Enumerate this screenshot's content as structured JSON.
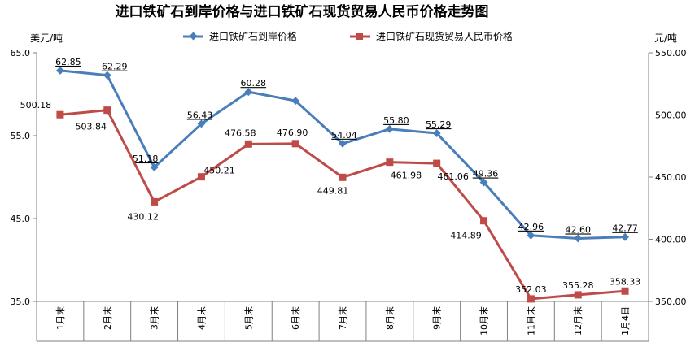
{
  "chart_data": {
    "type": "line",
    "title": "进口铁矿石到岸价格与进口铁矿石现货贸易人民币价格走势图",
    "categories": [
      "1月末",
      "2月末",
      "3月末",
      "4月末",
      "5月末",
      "6月末",
      "7月末",
      "8月末",
      "9月末",
      "10月末",
      "11月末",
      "12月末",
      "1月4日"
    ],
    "y_left": {
      "label": "美元/吨",
      "min": 35,
      "max": 65,
      "ticks": [
        "35.0",
        "45.0",
        "55.0",
        "65.0"
      ]
    },
    "y_right": {
      "label": "元/吨",
      "min": 350,
      "max": 550,
      "ticks": [
        "350.00",
        "400.00",
        "450.00",
        "500.00",
        "550.00"
      ]
    },
    "legend_position": "top",
    "series": [
      {
        "name": "进口铁矿石到岸价格",
        "axis": "left",
        "color": "#4a7ebb",
        "marker": "diamond",
        "values": [
          62.85,
          62.29,
          51.18,
          56.43,
          60.28,
          59.2,
          54.04,
          55.8,
          55.29,
          49.36,
          42.96,
          42.6,
          42.77
        ],
        "labels": [
          "62.85",
          "62.29",
          "51.18",
          "56.43",
          "60.28",
          "",
          "54.04",
          "55.80",
          "55.29",
          "49.36",
          "42.96",
          "42.60",
          "42.77"
        ]
      },
      {
        "name": "进口铁矿石现货贸易人民币价格",
        "axis": "right",
        "color": "#be4b48",
        "marker": "square",
        "values": [
          500.18,
          503.84,
          430.12,
          450.21,
          476.58,
          476.9,
          449.81,
          461.98,
          461.06,
          414.89,
          352.03,
          355.28,
          358.33
        ],
        "labels": [
          "500.18",
          "503.84",
          "430.12",
          "450.21",
          "476.58",
          "476.90",
          "449.81",
          "461.98",
          "461.06",
          "414.89",
          "352.03",
          "355.28",
          "358.33"
        ]
      }
    ]
  }
}
